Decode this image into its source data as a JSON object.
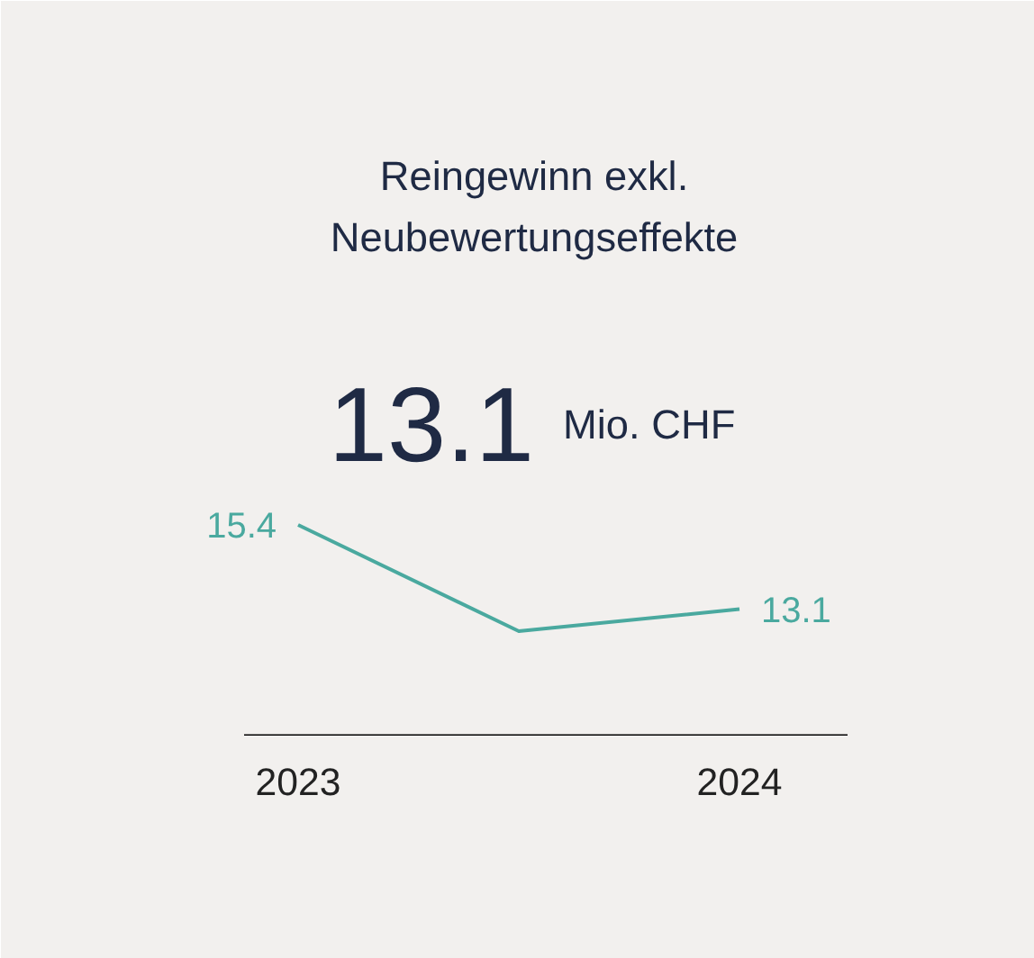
{
  "chart_data": {
    "type": "line",
    "title": "Reingewinn exkl.\nNeubewertungseffekte",
    "annotations": [
      "13.1",
      "Mio. CHF"
    ],
    "categories": [
      "2023",
      null,
      "2024"
    ],
    "series": [
      {
        "color": "#4aa99f",
        "values": [
          15.4,
          12.5,
          13.1
        ],
        "value_labels": [
          "15.4",
          null,
          "13.1"
        ]
      }
    ],
    "grid": false,
    "marker": "none",
    "line_style": "solid"
  }
}
